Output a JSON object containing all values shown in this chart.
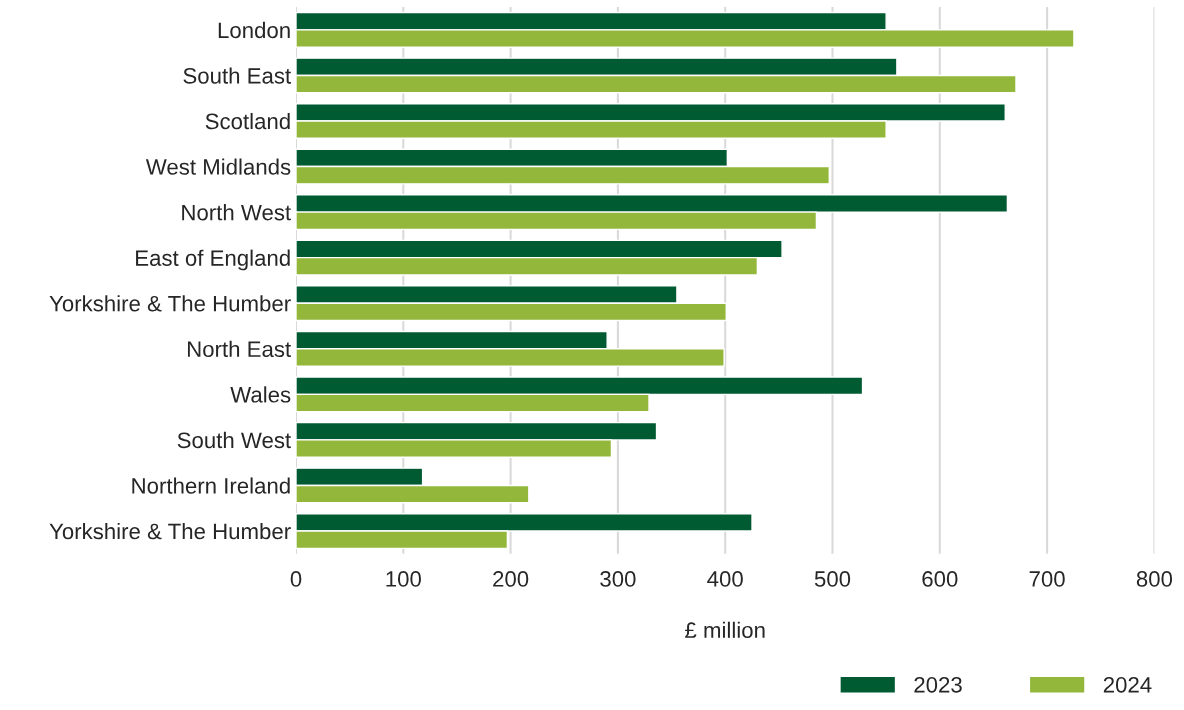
{
  "chart_data": {
    "type": "bar",
    "orientation": "horizontal",
    "xlabel": "£ million",
    "categories": [
      "London",
      "South East",
      "Scotland",
      "West Midlands",
      "North West",
      "East of England",
      "Yorkshire & The Humber",
      "North East",
      "Wales",
      "South West",
      "Northern Ireland",
      "Yorkshire & The Humber"
    ],
    "series": [
      {
        "name": "2023",
        "color": "#005a32",
        "values": [
          550,
          560,
          661,
          402,
          663,
          453,
          355,
          290,
          528,
          336,
          118,
          425
        ]
      },
      {
        "name": "2024",
        "color": "#93b73a",
        "values": [
          725,
          671,
          550,
          497,
          485,
          430,
          401,
          399,
          329,
          294,
          217,
          197
        ]
      }
    ],
    "xlim": [
      0,
      800
    ],
    "xticks": [
      0,
      100,
      200,
      300,
      400,
      500,
      600,
      700,
      800
    ],
    "grid": "x",
    "legend": "bottom right"
  }
}
